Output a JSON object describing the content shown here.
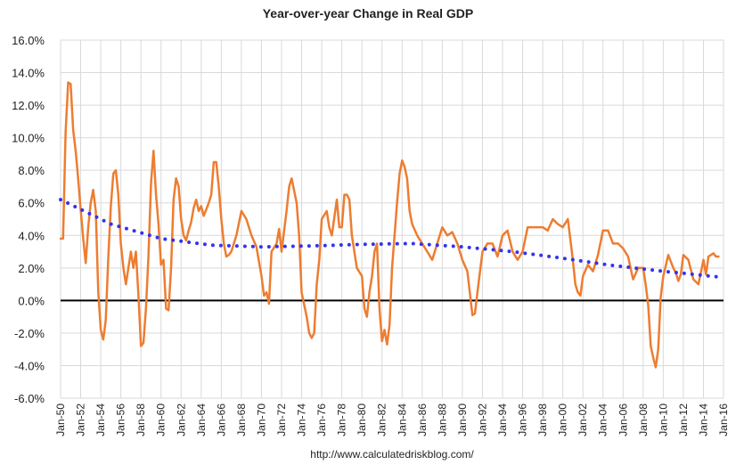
{
  "chart_data": {
    "type": "line",
    "title": "Year-over-year Change in Real GDP",
    "source": "http://www.calculatedriskblog.com/",
    "xlim": [
      1950,
      2016
    ],
    "xticks": [
      {
        "value": 1950,
        "label": "Jan-50"
      },
      {
        "value": 1952,
        "label": "Jan-52"
      },
      {
        "value": 1954,
        "label": "Jan-54"
      },
      {
        "value": 1956,
        "label": "Jan-56"
      },
      {
        "value": 1958,
        "label": "Jan-58"
      },
      {
        "value": 1960,
        "label": "Jan-60"
      },
      {
        "value": 1962,
        "label": "Jan-62"
      },
      {
        "value": 1964,
        "label": "Jan-64"
      },
      {
        "value": 1966,
        "label": "Jan-66"
      },
      {
        "value": 1968,
        "label": "Jan-68"
      },
      {
        "value": 1970,
        "label": "Jan-70"
      },
      {
        "value": 1972,
        "label": "Jan-72"
      },
      {
        "value": 1974,
        "label": "Jan-74"
      },
      {
        "value": 1976,
        "label": "Jan-76"
      },
      {
        "value": 1978,
        "label": "Jan-78"
      },
      {
        "value": 1980,
        "label": "Jan-80"
      },
      {
        "value": 1982,
        "label": "Jan-82"
      },
      {
        "value": 1984,
        "label": "Jan-84"
      },
      {
        "value": 1986,
        "label": "Jan-86"
      },
      {
        "value": 1988,
        "label": "Jan-88"
      },
      {
        "value": 1990,
        "label": "Jan-90"
      },
      {
        "value": 1992,
        "label": "Jan-92"
      },
      {
        "value": 1994,
        "label": "Jan-94"
      },
      {
        "value": 1996,
        "label": "Jan-96"
      },
      {
        "value": 1998,
        "label": "Jan-98"
      },
      {
        "value": 2000,
        "label": "Jan-00"
      },
      {
        "value": 2002,
        "label": "Jan-02"
      },
      {
        "value": 2004,
        "label": "Jan-04"
      },
      {
        "value": 2006,
        "label": "Jan-06"
      },
      {
        "value": 2008,
        "label": "Jan-08"
      },
      {
        "value": 2010,
        "label": "Jan-10"
      },
      {
        "value": 2012,
        "label": "Jan-12"
      },
      {
        "value": 2014,
        "label": "Jan-14"
      },
      {
        "value": 2016,
        "label": "Jan-16"
      }
    ],
    "ylim": [
      -6,
      16
    ],
    "yticks": [
      {
        "value": -6,
        "label": "-6.0%"
      },
      {
        "value": -4,
        "label": "-4.0%"
      },
      {
        "value": -2,
        "label": "-2.0%"
      },
      {
        "value": 0,
        "label": "0.0%"
      },
      {
        "value": 2,
        "label": "2.0%"
      },
      {
        "value": 4,
        "label": "4.0%"
      },
      {
        "value": 6,
        "label": "6.0%"
      },
      {
        "value": 8,
        "label": "8.0%"
      },
      {
        "value": 10,
        "label": "10.0%"
      },
      {
        "value": 12,
        "label": "12.0%"
      },
      {
        "value": 14,
        "label": "14.0%"
      },
      {
        "value": 16,
        "label": "16.0%"
      }
    ],
    "grid": true,
    "series": [
      {
        "color": "#ed7d31",
        "style": "solid",
        "x": [
          1950,
          1950.25,
          1950.5,
          1950.75,
          1951,
          1951.25,
          1951.5,
          1951.75,
          1952,
          1952.25,
          1952.5,
          1952.75,
          1953,
          1953.25,
          1953.5,
          1953.75,
          1954,
          1954.25,
          1954.5,
          1954.75,
          1955,
          1955.25,
          1955.5,
          1955.75,
          1956,
          1956.25,
          1956.5,
          1956.75,
          1957,
          1957.25,
          1957.5,
          1957.75,
          1958,
          1958.25,
          1958.5,
          1958.75,
          1959,
          1959.25,
          1959.5,
          1959.75,
          1960,
          1960.25,
          1960.5,
          1960.75,
          1961,
          1961.25,
          1961.5,
          1961.75,
          1962,
          1962.25,
          1962.5,
          1962.75,
          1963,
          1963.25,
          1963.5,
          1963.75,
          1964,
          1964.25,
          1964.5,
          1964.75,
          1965,
          1965.25,
          1965.5,
          1965.75,
          1966,
          1966.25,
          1966.5,
          1966.75,
          1967,
          1967.5,
          1968,
          1968.5,
          1969,
          1969.5,
          1970,
          1970.25,
          1970.5,
          1970.75,
          1971,
          1971.5,
          1971.75,
          1972,
          1972.5,
          1972.75,
          1973,
          1973.5,
          1973.75,
          1974,
          1974.5,
          1974.75,
          1975,
          1975.25,
          1975.5,
          1975.75,
          1976,
          1976.5,
          1976.75,
          1977,
          1977.5,
          1977.75,
          1978,
          1978.25,
          1978.5,
          1978.75,
          1979,
          1979.5,
          1980,
          1980.25,
          1980.5,
          1980.75,
          1981,
          1981.25,
          1981.5,
          1981.75,
          1982,
          1982.25,
          1982.5,
          1982.75,
          1983,
          1983.25,
          1983.5,
          1983.75,
          1984,
          1984.25,
          1984.5,
          1984.75,
          1985,
          1985.5,
          1986,
          1986.5,
          1987,
          1987.5,
          1988,
          1988.5,
          1989,
          1989.5,
          1990,
          1990.5,
          1991,
          1991.25,
          1991.5,
          1992,
          1992.5,
          1993,
          1993.5,
          1994,
          1994.5,
          1995,
          1995.5,
          1996,
          1996.5,
          1997,
          1997.5,
          1998,
          1998.5,
          1999,
          1999.5,
          2000,
          2000.5,
          2001,
          2001.25,
          2001.5,
          2001.75,
          2002,
          2002.5,
          2003,
          2003.5,
          2004,
          2004.5,
          2005,
          2005.5,
          2006,
          2006.5,
          2007,
          2007.5,
          2008,
          2008.25,
          2008.5,
          2008.75,
          2009,
          2009.25,
          2009.5,
          2009.75,
          2010,
          2010.5,
          2011,
          2011.25,
          2011.5,
          2011.75,
          2012,
          2012.5,
          2013,
          2013.5,
          2014,
          2014.25,
          2014.5,
          2014.75,
          2015,
          2015.25,
          2015.5
        ],
        "values": [
          3.8,
          3.8,
          10.3,
          13.4,
          13.3,
          10.5,
          9.2,
          7.5,
          5.6,
          3.8,
          2.3,
          4.5,
          6.0,
          6.8,
          5.5,
          0.5,
          -1.8,
          -2.4,
          -1.2,
          2.6,
          5.8,
          7.8,
          8.0,
          6.5,
          3.5,
          2.0,
          1.0,
          2.0,
          3.0,
          2.0,
          3.0,
          0.3,
          -2.8,
          -2.6,
          -0.5,
          2.7,
          7.2,
          9.2,
          6.5,
          4.7,
          2.2,
          2.5,
          -0.5,
          -0.6,
          2.0,
          6.2,
          7.5,
          7.0,
          5.0,
          4.0,
          3.7,
          4.3,
          4.8,
          5.7,
          6.2,
          5.5,
          5.8,
          5.2,
          5.6,
          6.0,
          6.5,
          8.5,
          8.5,
          7.0,
          5.0,
          3.5,
          2.7,
          2.8,
          3.0,
          4.0,
          5.5,
          5.0,
          4.0,
          3.3,
          1.5,
          0.3,
          0.5,
          -0.2,
          3.0,
          3.5,
          4.4,
          3.0,
          5.5,
          7.0,
          7.5,
          6.0,
          4.0,
          0.5,
          -1.0,
          -2.0,
          -2.3,
          -2.0,
          1.0,
          2.5,
          5.0,
          5.5,
          4.5,
          4.0,
          6.2,
          4.5,
          4.5,
          6.5,
          6.5,
          6.2,
          4.0,
          2.0,
          1.5,
          -0.5,
          -1.0,
          0.5,
          1.5,
          3.0,
          3.5,
          -0.5,
          -2.5,
          -1.8,
          -2.7,
          -1.5,
          2.0,
          4.0,
          6.0,
          7.8,
          8.6,
          8.2,
          7.5,
          5.5,
          4.7,
          4.0,
          3.5,
          3.0,
          2.5,
          3.5,
          4.5,
          4.0,
          4.2,
          3.5,
          2.5,
          1.8,
          -0.9,
          -0.8,
          0.5,
          3.0,
          3.5,
          3.5,
          2.7,
          4.0,
          4.3,
          3.0,
          2.5,
          3.0,
          4.5,
          4.5,
          4.5,
          4.5,
          4.3,
          5.0,
          4.7,
          4.5,
          5.0,
          2.5,
          1.0,
          0.5,
          0.3,
          1.5,
          2.2,
          1.8,
          2.8,
          4.3,
          4.3,
          3.5,
          3.5,
          3.2,
          2.7,
          1.3,
          2.0,
          2.0,
          1.0,
          -0.3,
          -2.8,
          -3.5,
          -4.1,
          -3.0,
          0.2,
          1.5,
          2.8,
          2.0,
          1.7,
          1.2,
          1.6,
          2.8,
          2.5,
          1.3,
          1.0,
          2.5,
          1.6,
          2.7,
          2.8,
          2.9,
          2.7,
          2.7
        ]
      },
      {
        "color": "#3333ee",
        "style": "dotted",
        "x": [
          1950,
          1955,
          1960,
          1965,
          1970,
          1975,
          1980,
          1985,
          1990,
          1995,
          2000,
          2005,
          2010,
          2015.5
        ],
        "values": [
          6.2,
          4.7,
          3.8,
          3.4,
          3.3,
          3.35,
          3.45,
          3.5,
          3.3,
          3.0,
          2.6,
          2.15,
          1.8,
          1.45
        ]
      }
    ]
  }
}
